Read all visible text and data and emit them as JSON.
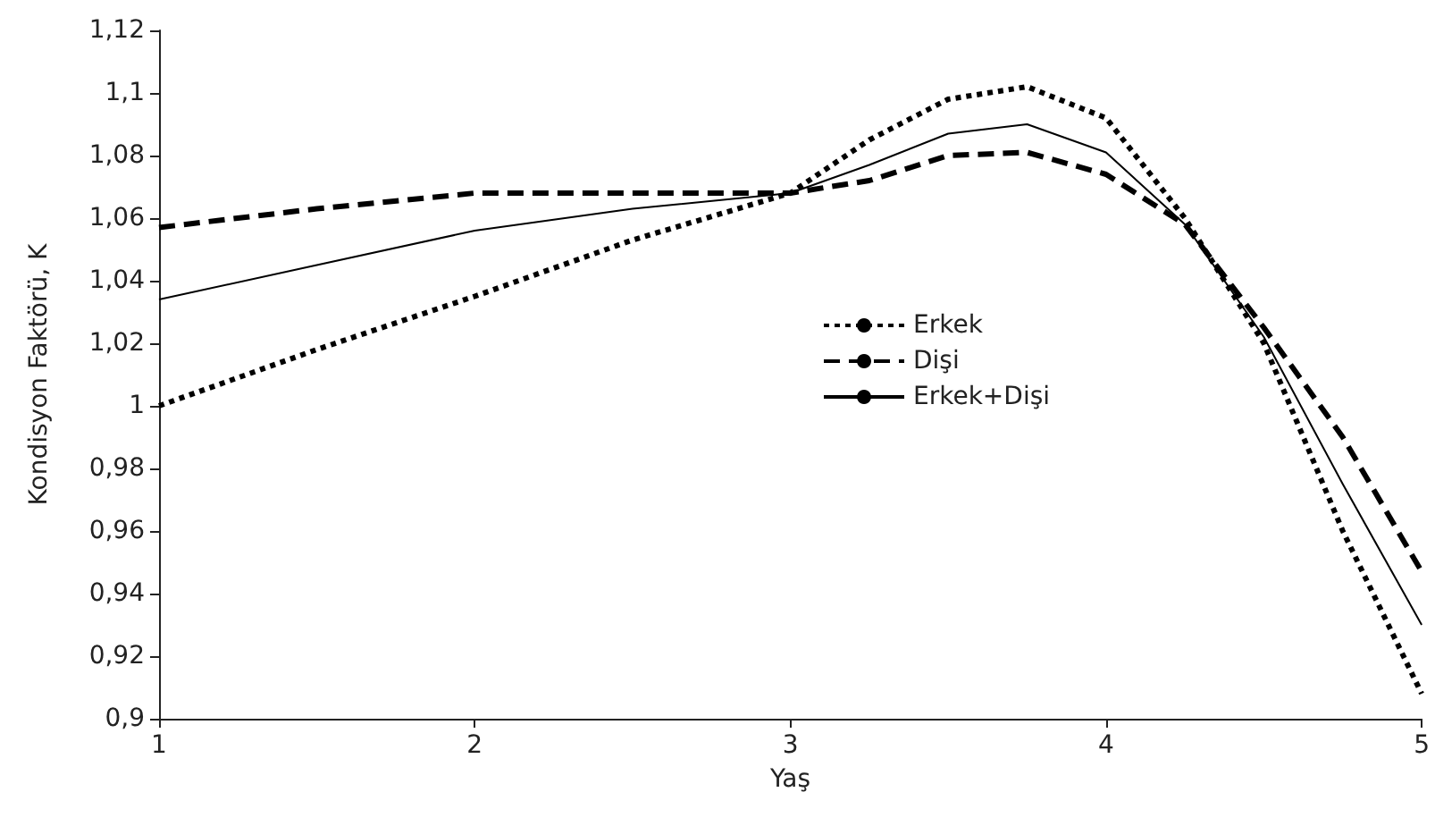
{
  "chart_data": {
    "type": "line",
    "xlabel": "Yaş",
    "ylabel": "Kondisyon Faktörü, K",
    "xlim": [
      1,
      5
    ],
    "xticks": [
      1,
      2,
      3,
      4,
      5
    ],
    "ylim": [
      0.9,
      1.12
    ],
    "yticks": [
      {
        "value": 0.9,
        "label": "0,9"
      },
      {
        "value": 0.92,
        "label": "0,92"
      },
      {
        "value": 0.94,
        "label": "0,94"
      },
      {
        "value": 0.96,
        "label": "0,96"
      },
      {
        "value": 0.98,
        "label": "0,98"
      },
      {
        "value": 1,
        "label": "1"
      },
      {
        "value": 1.02,
        "label": "1,02"
      },
      {
        "value": 1.04,
        "label": "1,04"
      },
      {
        "value": 1.06,
        "label": "1,06"
      },
      {
        "value": 1.08,
        "label": "1,08"
      },
      {
        "value": 1.1,
        "label": "1,1"
      },
      {
        "value": 1.12,
        "label": "1,12"
      }
    ],
    "grid": false,
    "legend": "right",
    "marker": "none",
    "x": [
      1,
      1.5,
      2,
      2.5,
      3,
      3.25,
      3.5,
      3.75,
      4,
      4.25,
      4.5,
      4.75,
      5
    ],
    "series": [
      {
        "name": "Erkek",
        "color": "#000000",
        "line_style": "dotted",
        "values": [
          1.0,
          1.018,
          1.035,
          1.053,
          1.068,
          1.085,
          1.098,
          1.102,
          1.092,
          1.06,
          1.02,
          0.96,
          0.908
        ]
      },
      {
        "name": "Dişi",
        "color": "#000000",
        "line_style": "dashed",
        "values": [
          1.057,
          1.063,
          1.068,
          1.068,
          1.068,
          1.072,
          1.08,
          1.081,
          1.074,
          1.058,
          1.025,
          0.99,
          0.947
        ]
      },
      {
        "name": "Erkek+Dişi",
        "color": "#000000",
        "line_style": "solid",
        "values": [
          1.034,
          1.045,
          1.056,
          1.063,
          1.068,
          1.077,
          1.087,
          1.09,
          1.081,
          1.058,
          1.022,
          0.975,
          0.93
        ]
      }
    ]
  }
}
